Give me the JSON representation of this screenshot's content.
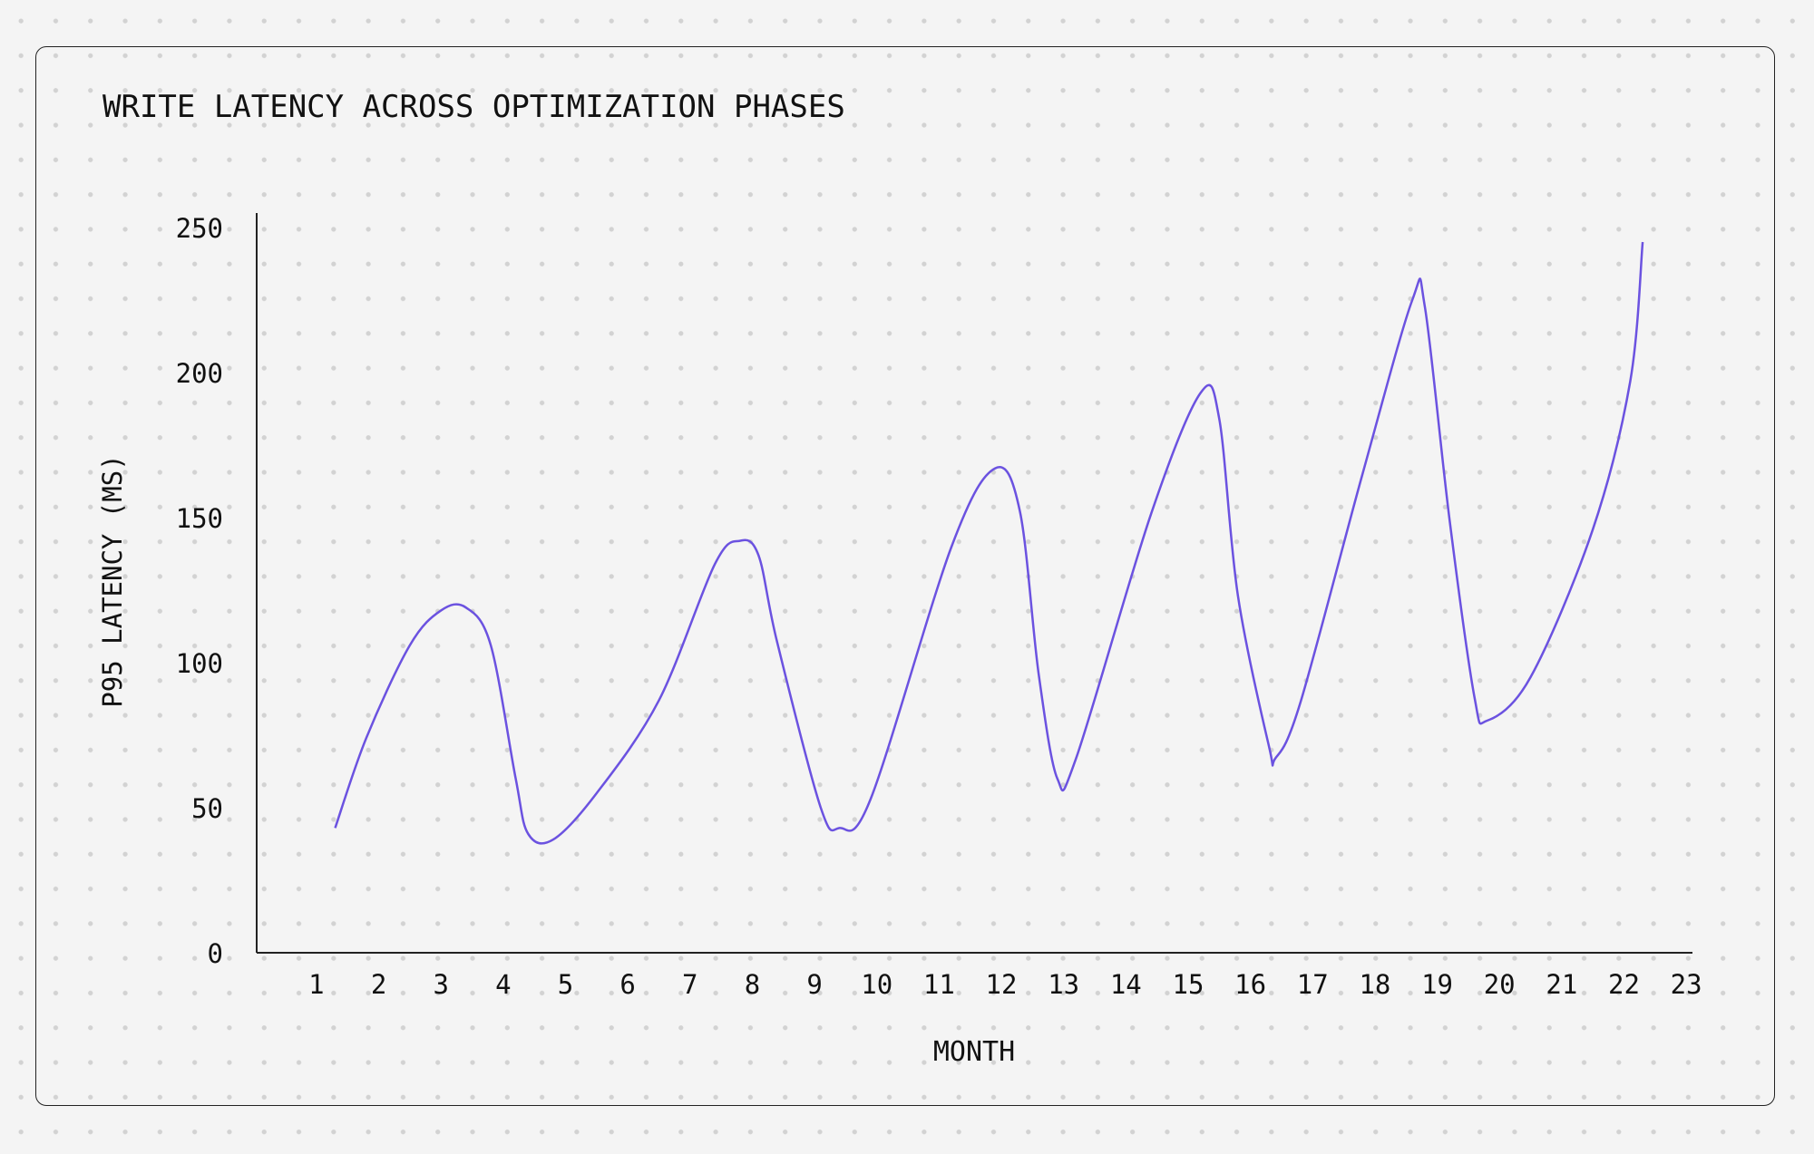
{
  "chart_data": {
    "type": "line",
    "title": "WRITE LATENCY ACROSS OPTIMIZATION PHASES",
    "xlabel": "MONTH",
    "ylabel": "P95 LATENCY (MS)",
    "xlim": [
      0.04,
      23.1
    ],
    "ylim": [
      0,
      255
    ],
    "x_ticks": [
      1,
      2,
      3,
      4,
      5,
      6,
      7,
      8,
      9,
      10,
      11,
      12,
      13,
      14,
      15,
      16,
      17,
      18,
      19,
      20,
      21,
      22,
      23
    ],
    "y_ticks": [
      0,
      50,
      100,
      150,
      200,
      250
    ],
    "grid": false,
    "line_color": "#6b52e0",
    "series": [
      {
        "x": [
          1.3,
          1.8,
          2.5,
          3.0,
          3.4,
          3.8,
          4.2,
          4.4,
          4.8,
          5.5,
          6.5,
          7.4,
          7.8,
          8.1,
          8.4,
          9.1,
          9.4,
          9.9,
          11.2,
          11.9,
          12.3,
          12.6,
          12.9,
          13.2,
          14.4,
          15.2,
          15.5,
          15.8,
          16.3,
          16.4,
          16.8,
          17.8,
          18.6,
          18.8,
          19.2,
          19.6,
          19.8,
          20.5,
          21.5,
          22.1,
          22.3
        ],
        "values": [
          43,
          74,
          106,
          118,
          119,
          106,
          60,
          41,
          39,
          55,
          87,
          134,
          142,
          137,
          107,
          50,
          43,
          53,
          140,
          167,
          152,
          96,
          60,
          67,
          151,
          193,
          184,
          123,
          71,
          67,
          86,
          165,
          225,
          223,
          149,
          88,
          80,
          95,
          146,
          197,
          245
        ]
      }
    ]
  }
}
